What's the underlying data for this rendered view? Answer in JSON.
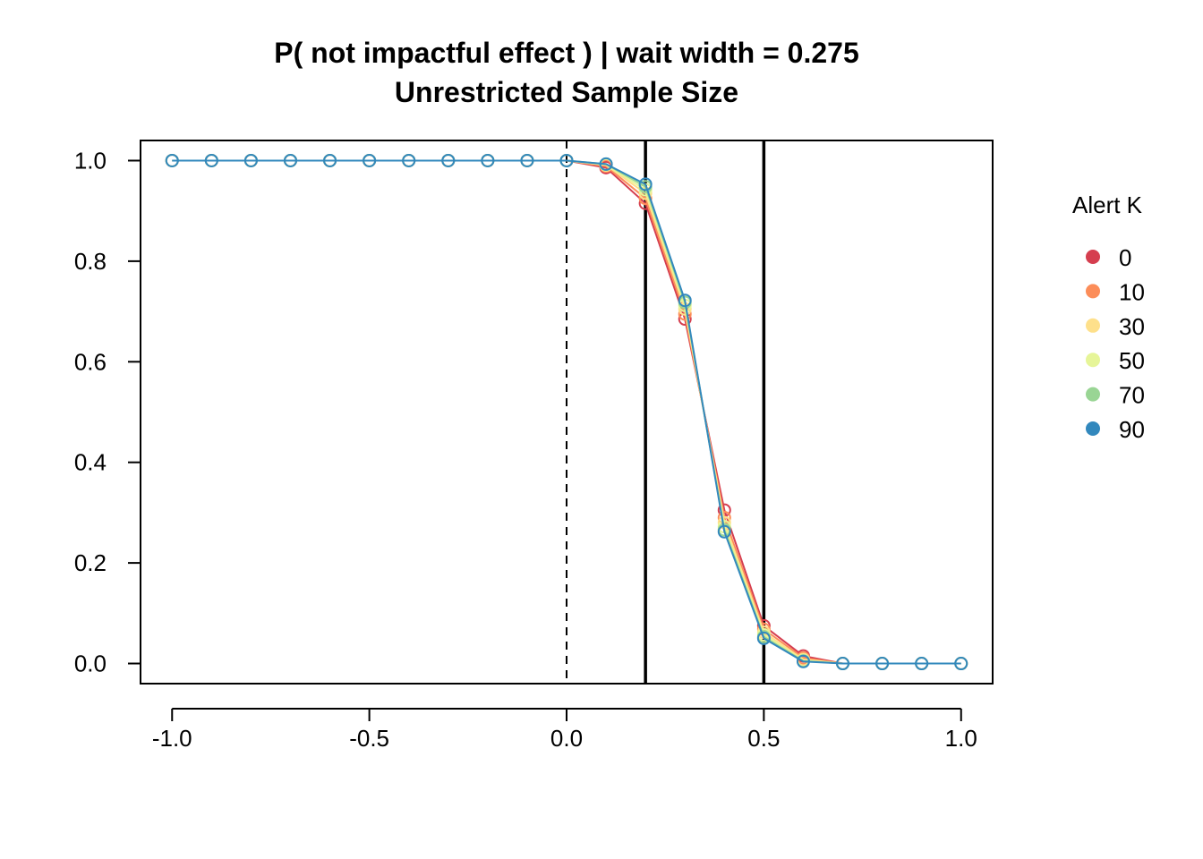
{
  "chart_data": {
    "type": "line",
    "title": "P( not impactful effect ) | wait width = 0.275",
    "subtitle": "Unrestricted Sample Size",
    "xlabel": "",
    "ylabel": "",
    "xlim": [
      -1.08,
      1.08
    ],
    "ylim": [
      -0.04,
      1.04
    ],
    "x_ticks": [
      -1.0,
      -0.5,
      0.0,
      0.5,
      1.0
    ],
    "x_tick_labels": [
      "-1.0",
      "-0.5",
      "0.0",
      "0.5",
      "1.0"
    ],
    "y_ticks": [
      0.0,
      0.2,
      0.4,
      0.6,
      0.8,
      1.0
    ],
    "y_tick_labels": [
      "0.0",
      "0.2",
      "0.4",
      "0.6",
      "0.8",
      "1.0"
    ],
    "reference_lines": [
      {
        "x": 0.0,
        "style": "dashed"
      },
      {
        "x": 0.2,
        "style": "solid"
      },
      {
        "x": 0.5,
        "style": "solid"
      }
    ],
    "x": [
      -1.0,
      -0.9,
      -0.8,
      -0.7,
      -0.6,
      -0.5,
      -0.4,
      -0.3,
      -0.2,
      -0.1,
      0.0,
      0.1,
      0.2,
      0.3,
      0.4,
      0.5,
      0.6,
      0.7,
      0.8,
      0.9,
      1.0
    ],
    "legend_title": "Alert K",
    "legend_position": "right",
    "series": [
      {
        "name": "0",
        "color": "#d53e4f",
        "values": [
          1,
          1,
          1,
          1,
          1,
          1,
          1,
          1,
          1,
          1,
          1,
          0.986,
          0.915,
          0.685,
          0.305,
          0.075,
          0.015,
          0,
          0,
          0,
          0
        ]
      },
      {
        "name": "10",
        "color": "#fc8d59",
        "values": [
          1,
          1,
          1,
          1,
          1,
          1,
          1,
          1,
          1,
          1,
          1,
          0.989,
          0.925,
          0.695,
          0.29,
          0.068,
          0.011,
          0,
          0,
          0,
          0
        ]
      },
      {
        "name": "30",
        "color": "#fee08b",
        "values": [
          1,
          1,
          1,
          1,
          1,
          1,
          1,
          1,
          1,
          1,
          1,
          0.991,
          0.935,
          0.705,
          0.28,
          0.062,
          0.008,
          0,
          0,
          0,
          0
        ]
      },
      {
        "name": "50",
        "color": "#e6f598",
        "values": [
          1,
          1,
          1,
          1,
          1,
          1,
          1,
          1,
          1,
          1,
          1,
          0.992,
          0.942,
          0.712,
          0.272,
          0.057,
          0.006,
          0,
          0,
          0,
          0
        ]
      },
      {
        "name": "70",
        "color": "#99d594",
        "values": [
          1,
          1,
          1,
          1,
          1,
          1,
          1,
          1,
          1,
          1,
          1,
          0.993,
          0.948,
          0.718,
          0.266,
          0.053,
          0.005,
          0,
          0,
          0,
          0
        ]
      },
      {
        "name": "90",
        "color": "#3288bd",
        "values": [
          1,
          1,
          1,
          1,
          1,
          1,
          1,
          1,
          1,
          1,
          1,
          0.993,
          0.953,
          0.722,
          0.262,
          0.05,
          0.004,
          0,
          0,
          0,
          0
        ]
      }
    ]
  }
}
